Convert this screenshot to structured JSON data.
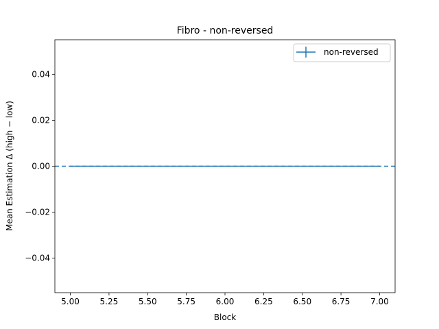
{
  "chart_data": {
    "type": "line",
    "title": "Fibro - non-reversed",
    "xlabel": "Block",
    "ylabel": "Mean Estimation Δ (high − low)",
    "xlim": [
      4.9,
      7.1
    ],
    "ylim": [
      -0.055,
      0.055
    ],
    "xticks": [
      5.0,
      5.25,
      5.5,
      5.75,
      6.0,
      6.25,
      6.5,
      6.75,
      7.0
    ],
    "xtick_labels": [
      "5.00",
      "5.25",
      "5.50",
      "5.75",
      "6.00",
      "6.25",
      "6.50",
      "6.75",
      "7.00"
    ],
    "yticks": [
      0.04,
      0.02,
      0.0,
      -0.02,
      -0.04
    ],
    "ytick_labels": [
      "0.04",
      "0.02",
      "0.00",
      "−0.02",
      "−0.04"
    ],
    "grid": false,
    "legend_position": "top-right",
    "series": [
      {
        "name": "non-reversed",
        "x": [
          5,
          6,
          7
        ],
        "y": [
          0.0,
          0.0,
          0.0
        ],
        "yerr": [
          0.0,
          0.0,
          0.0
        ],
        "color": "#1f77b4"
      }
    ],
    "reference_line": {
      "y": 0.0,
      "style": "dashed",
      "color": "#1f77b4"
    }
  }
}
